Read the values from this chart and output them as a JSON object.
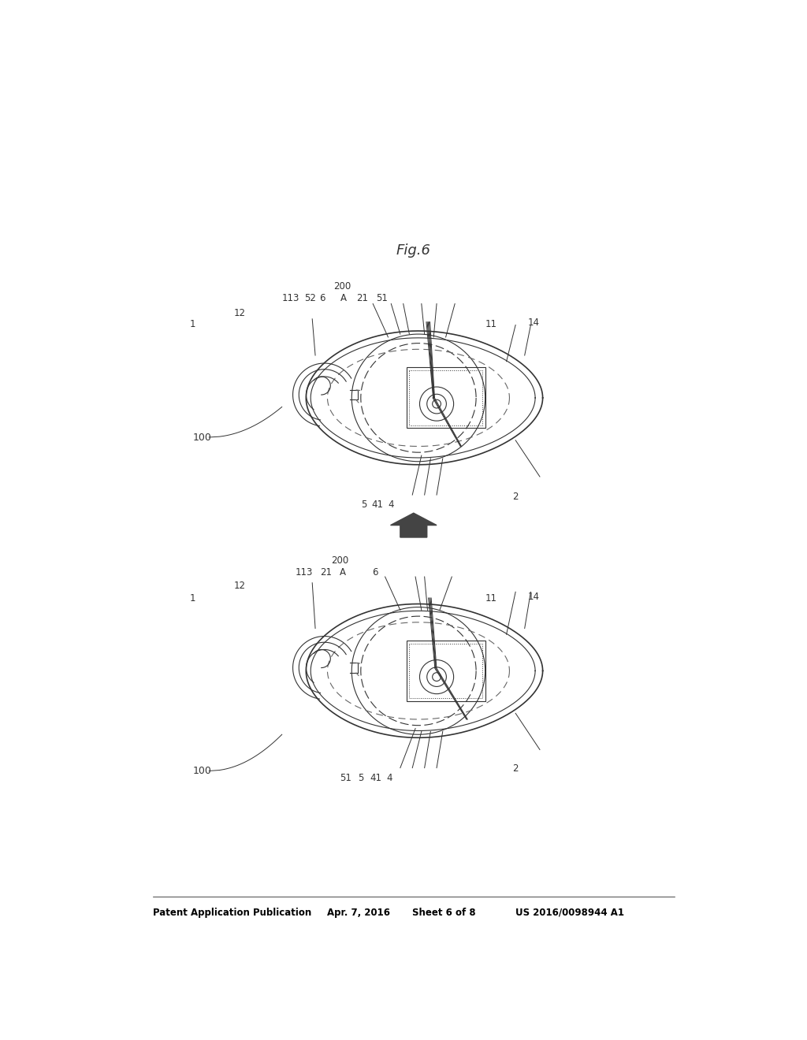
{
  "bg_color": "#ffffff",
  "header_text": "Patent Application Publication",
  "header_date": "Apr. 7, 2016",
  "header_sheet": "Sheet 6 of 8",
  "header_patent": "US 2016/0098944 A1",
  "fig_label": "Fig.6",
  "line_color": "#333333",
  "dash_color": "#666666"
}
